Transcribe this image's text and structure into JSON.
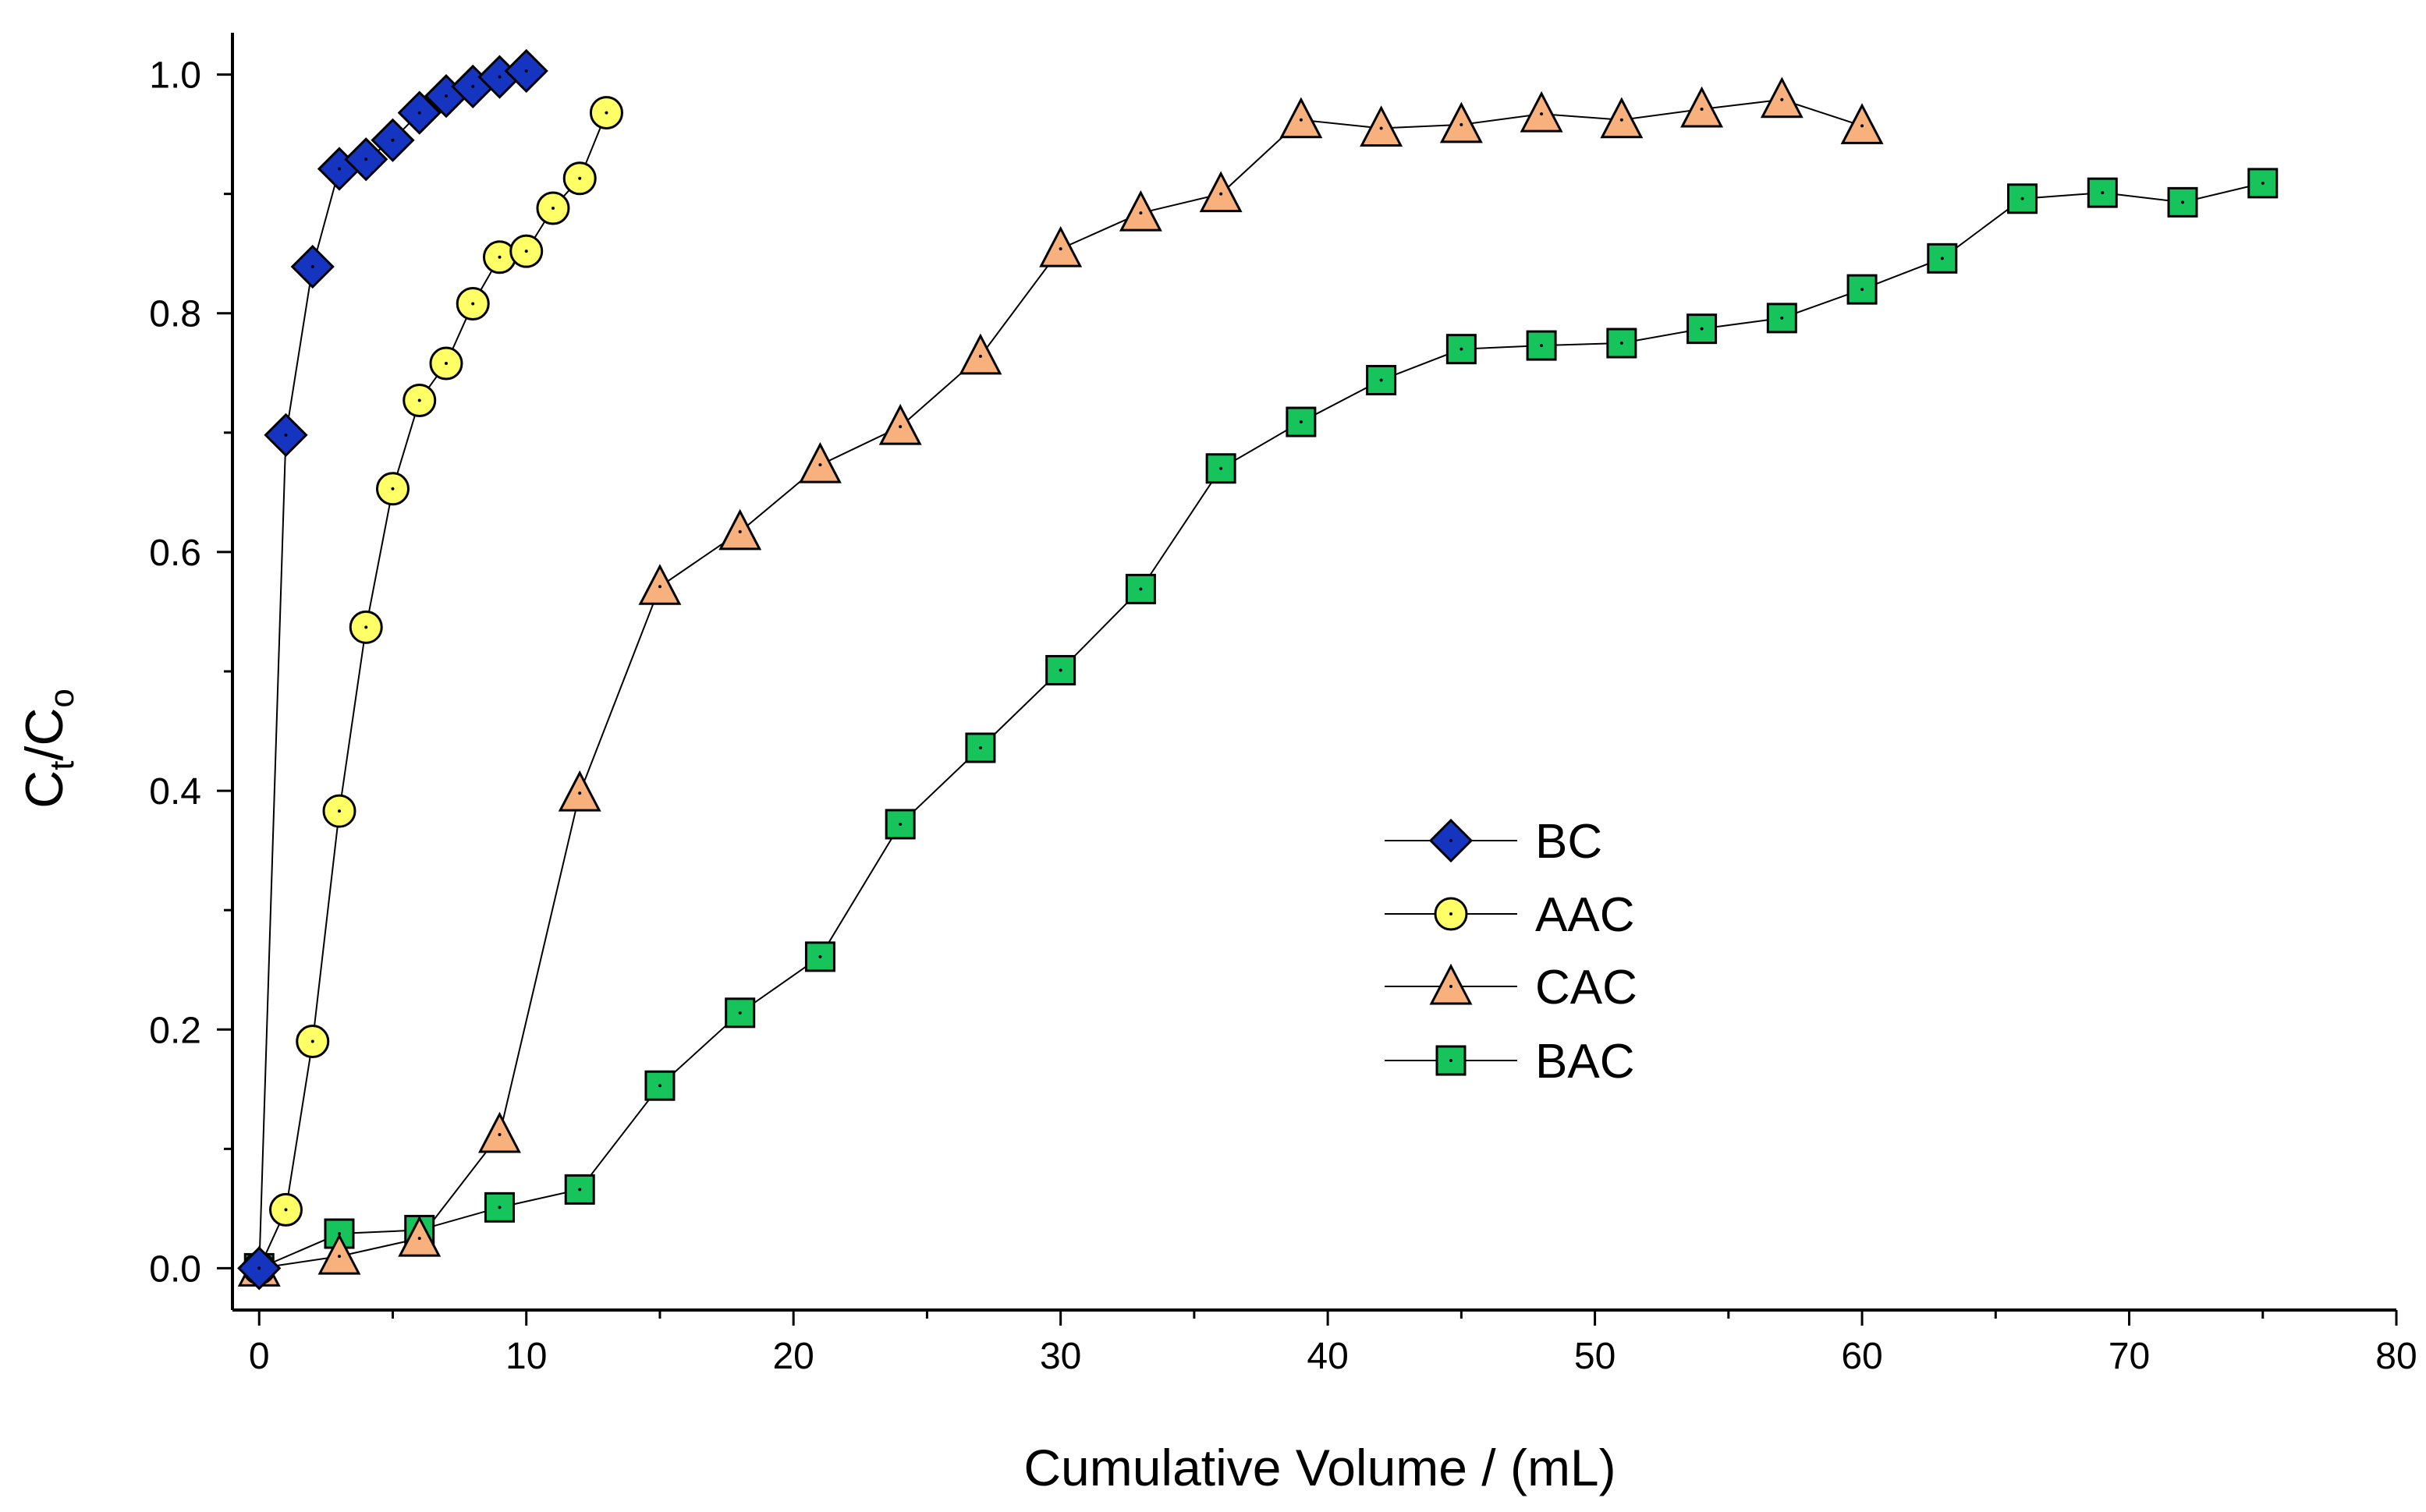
{
  "chart_data": {
    "type": "scatter",
    "title": "",
    "xlabel": "Cumulative Volume / (mL)",
    "ylabel": {
      "main": "C",
      "sub1": "t",
      "sep": "/C",
      "sub2": "o"
    },
    "xlim": [
      -1,
      80
    ],
    "ylim": [
      -0.035,
      1.035
    ],
    "xticks": [
      0,
      10,
      20,
      30,
      40,
      50,
      60,
      70,
      80
    ],
    "xtick_labels": [
      "0",
      "10",
      "20",
      "30",
      "40",
      "50",
      "60",
      "70",
      "80"
    ],
    "yticks": [
      0.0,
      0.2,
      0.4,
      0.6,
      0.8,
      1.0
    ],
    "ytick_labels": [
      "0.0",
      "0.2",
      "0.4",
      "0.6",
      "0.8",
      "1.0"
    ],
    "grid": false,
    "legend_position": "center-right",
    "series": [
      {
        "name": "BC",
        "marker": "diamond",
        "color": "#1535c0",
        "x": [
          0,
          1,
          2,
          3,
          4,
          5,
          6,
          7,
          8,
          9,
          10
        ],
        "y": [
          0.0,
          0.698,
          0.839,
          0.921,
          0.929,
          0.945,
          0.968,
          0.982,
          0.99,
          0.998,
          1.003
        ]
      },
      {
        "name": "AAC",
        "marker": "circle",
        "color": "#ffff66",
        "x": [
          0,
          1,
          2,
          3,
          4,
          5,
          6,
          7,
          8,
          9,
          10,
          11,
          12,
          13
        ],
        "y": [
          0.0,
          0.049,
          0.19,
          0.383,
          0.537,
          0.653,
          0.727,
          0.758,
          0.808,
          0.847,
          0.852,
          0.888,
          0.913,
          0.968
        ]
      },
      {
        "name": "CAC",
        "marker": "triangle",
        "color": "#f8b07c",
        "x": [
          0,
          3,
          6,
          9,
          12,
          15,
          18,
          21,
          24,
          27,
          30,
          33,
          36,
          39,
          42,
          45,
          48,
          51,
          54,
          57,
          60
        ],
        "y": [
          0.0,
          0.01,
          0.025,
          0.112,
          0.398,
          0.571,
          0.617,
          0.673,
          0.705,
          0.764,
          0.854,
          0.884,
          0.9,
          0.962,
          0.955,
          0.958,
          0.967,
          0.962,
          0.971,
          0.979,
          0.957
        ]
      },
      {
        "name": "BAC",
        "marker": "square",
        "color": "#17c45b",
        "x": [
          0,
          3,
          6,
          9,
          12,
          15,
          18,
          21,
          24,
          27,
          30,
          33,
          36,
          39,
          42,
          45,
          48,
          51,
          54,
          57,
          60,
          63,
          66,
          69,
          72,
          75
        ],
        "y": [
          0.0,
          0.029,
          0.032,
          0.051,
          0.066,
          0.153,
          0.214,
          0.261,
          0.372,
          0.436,
          0.501,
          0.569,
          0.67,
          0.709,
          0.744,
          0.77,
          0.773,
          0.775,
          0.787,
          0.796,
          0.82,
          0.846,
          0.896,
          0.901,
          0.893,
          0.909
        ]
      }
    ]
  }
}
